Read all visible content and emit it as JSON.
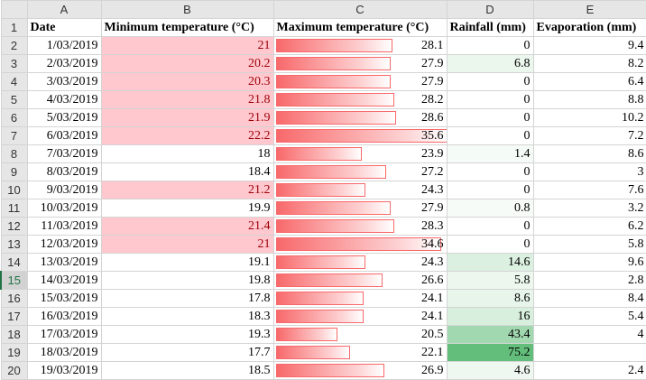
{
  "columns": [
    "A",
    "B",
    "C",
    "D",
    "E"
  ],
  "headers": {
    "date": "Date",
    "min": "Minimum temperature (°C)",
    "max": "Maximum temperature (°C)",
    "rain": "Rainfall (mm)",
    "evap": "Evaporation (mm)"
  },
  "header_row_number": "1",
  "rain_scale_max": 75.2,
  "max_scale": {
    "min": 12,
    "max": 35.6
  },
  "selected_row": "15",
  "rows": [
    {
      "n": "2",
      "date": "1/03/2019",
      "min": "21",
      "max": "28.1",
      "rain": "0",
      "evap": "9.4"
    },
    {
      "n": "3",
      "date": "2/03/2019",
      "min": "20.2",
      "max": "27.9",
      "rain": "6.8",
      "evap": "8.2"
    },
    {
      "n": "4",
      "date": "3/03/2019",
      "min": "20.3",
      "max": "27.9",
      "rain": "0",
      "evap": "6.4"
    },
    {
      "n": "5",
      "date": "4/03/2019",
      "min": "21.8",
      "max": "28.2",
      "rain": "0",
      "evap": "8.8"
    },
    {
      "n": "6",
      "date": "5/03/2019",
      "min": "21.9",
      "max": "28.6",
      "rain": "0",
      "evap": "10.2"
    },
    {
      "n": "7",
      "date": "6/03/2019",
      "min": "22.2",
      "max": "35.6",
      "rain": "0",
      "evap": "7.2"
    },
    {
      "n": "8",
      "date": "7/03/2019",
      "min": "18",
      "max": "23.9",
      "rain": "1.4",
      "evap": "8.6"
    },
    {
      "n": "9",
      "date": "8/03/2019",
      "min": "18.4",
      "max": "27.2",
      "rain": "0",
      "evap": "3"
    },
    {
      "n": "10",
      "date": "9/03/2019",
      "min": "21.2",
      "max": "24.3",
      "rain": "0",
      "evap": "7.6"
    },
    {
      "n": "11",
      "date": "10/03/2019",
      "min": "19.9",
      "max": "27.9",
      "rain": "0.8",
      "evap": "3.2"
    },
    {
      "n": "12",
      "date": "11/03/2019",
      "min": "21.4",
      "max": "28.3",
      "rain": "0",
      "evap": "6.2"
    },
    {
      "n": "13",
      "date": "12/03/2019",
      "min": "21",
      "max": "34.6",
      "rain": "0",
      "evap": "5.8"
    },
    {
      "n": "14",
      "date": "13/03/2019",
      "min": "19.1",
      "max": "24.3",
      "rain": "14.6",
      "evap": "9.6"
    },
    {
      "n": "15",
      "date": "14/03/2019",
      "min": "19.8",
      "max": "26.6",
      "rain": "5.8",
      "evap": "2.8"
    },
    {
      "n": "16",
      "date": "15/03/2019",
      "min": "17.8",
      "max": "24.1",
      "rain": "8.6",
      "evap": "8.4"
    },
    {
      "n": "17",
      "date": "16/03/2019",
      "min": "18.3",
      "max": "24.1",
      "rain": "16",
      "evap": "5.4"
    },
    {
      "n": "18",
      "date": "17/03/2019",
      "min": "19.3",
      "max": "20.5",
      "rain": "43.4",
      "evap": "4"
    },
    {
      "n": "19",
      "date": "18/03/2019",
      "min": "17.7",
      "max": "22.1",
      "rain": "75.2",
      "evap": ""
    },
    {
      "n": "20",
      "date": "19/03/2019",
      "min": "18.5",
      "max": "26.9",
      "rain": "4.6",
      "evap": "2.4"
    }
  ]
}
